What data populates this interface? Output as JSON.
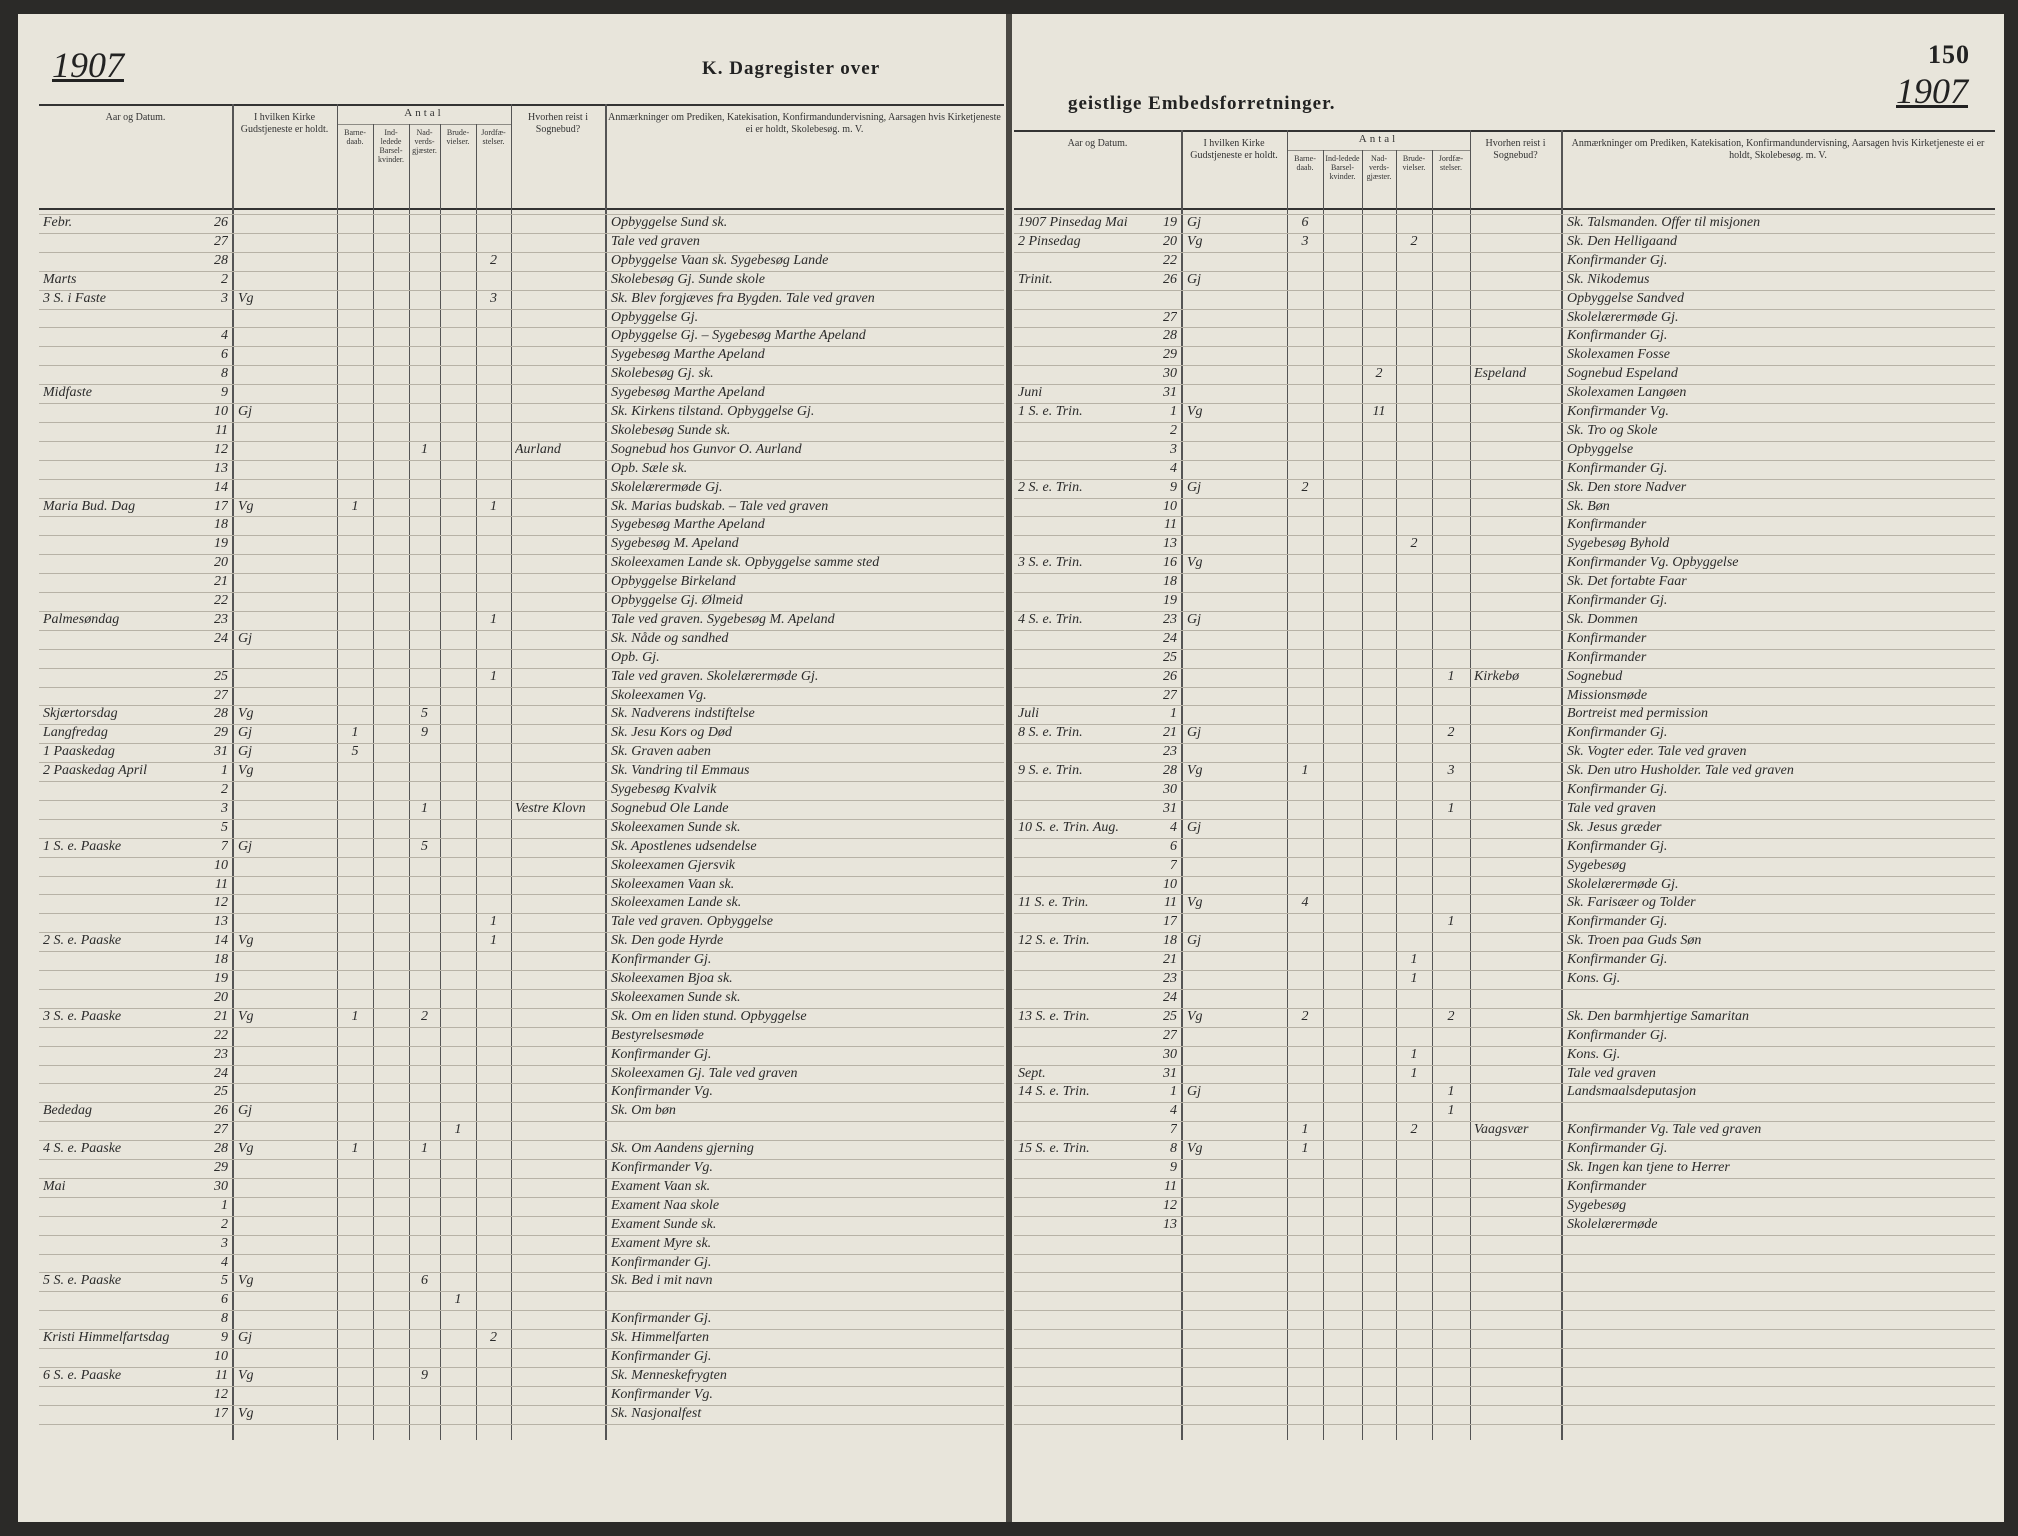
{
  "header": {
    "year_left": "1907",
    "title_left": "K. Dagregister over",
    "title_right": "geistlige Embedsforretninger.",
    "page_number": "150",
    "year_right": "1907"
  },
  "columns": {
    "date": "Aar og Datum.",
    "church": "I hvilken Kirke Gudstjeneste er holdt.",
    "antal": "Antal",
    "baptisms": "Barne-daab.",
    "churchings": "Ind-ledede Barsel-kvinder.",
    "communicants": "Nad-verds-gjæster.",
    "weddings": "Brude-vielser.",
    "burials": "Jordfæ-stelser.",
    "sick_call": "Hvorhen reist i Sognebud?",
    "note": "Anmærkninger om Prediken, Katekisation, Konfirmandundervisning, Aarsagen hvis Kirketjeneste ei er holdt, Skolebesøg. m. V."
  },
  "left_rows": [
    {
      "label": "Febr.",
      "day": "26",
      "note": "Opbyggelse Sund sk."
    },
    {
      "day": "27",
      "note": "Tale ved graven"
    },
    {
      "day": "28",
      "burials": "2",
      "note": "Opbyggelse Vaan sk. Sygebesøg Lande"
    },
    {
      "label": "Marts",
      "day": "2",
      "note": "Skolebesøg Gj. Sunde skole"
    },
    {
      "label": "3 S. i Faste",
      "day": "3",
      "church": "Vg",
      "burials": "3",
      "note": "Sk. Blev forgjæves fra Bygden. Tale ved graven"
    },
    {
      "note": "Opbyggelse Gj."
    },
    {
      "day": "4",
      "note": "Opbyggelse Gj. – Sygebesøg Marthe Apeland"
    },
    {
      "day": "6",
      "note": "Sygebesøg Marthe Apeland"
    },
    {
      "day": "8",
      "note": "Skolebesøg Gj. sk."
    },
    {
      "label": "Midfaste",
      "day": "9",
      "note": "Sygebesøg Marthe Apeland"
    },
    {
      "day": "10",
      "church": "Gj",
      "note": "Sk. Kirkens tilstand. Opbyggelse Gj."
    },
    {
      "day": "11",
      "note": "Skolebesøg Sunde sk."
    },
    {
      "day": "12",
      "communicants": "1",
      "sick_call": "Aurland",
      "note": "Sognebud hos Gunvor O. Aurland"
    },
    {
      "day": "13",
      "note": "Opb. Sæle sk."
    },
    {
      "day": "14",
      "note": "Skolelærermøde Gj."
    },
    {
      "label": "Maria Bud. Dag",
      "day": "17",
      "church": "Vg",
      "baptisms": "1",
      "burials": "1",
      "note": "Sk. Marias budskab. – Tale ved graven"
    },
    {
      "day": "18",
      "note": "Sygebesøg Marthe Apeland"
    },
    {
      "day": "19",
      "note": "Sygebesøg M. Apeland"
    },
    {
      "day": "20",
      "note": "Skoleexamen Lande sk. Opbyggelse samme sted"
    },
    {
      "day": "21",
      "note": "Opbyggelse Birkeland"
    },
    {
      "day": "22",
      "note": "Opbyggelse Gj. Ølmeid"
    },
    {
      "label": "Palmesøndag",
      "day": "23",
      "burials": "1",
      "note": "Tale ved graven. Sygebesøg M. Apeland"
    },
    {
      "day": "24",
      "church": "Gj",
      "note": "Sk. Nåde og sandhed"
    },
    {
      "note": "Opb. Gj."
    },
    {
      "day": "25",
      "burials": "1",
      "note": "Tale ved graven. Skolelærermøde Gj."
    },
    {
      "day": "27",
      "note": "Skoleexamen Vg."
    },
    {
      "label": "Skjærtorsdag",
      "day": "28",
      "church": "Vg",
      "communicants": "5",
      "note": "Sk. Nadverens indstiftelse"
    },
    {
      "label": "Langfredag",
      "day": "29",
      "church": "Gj",
      "baptisms": "1",
      "communicants": "9",
      "note": "Sk. Jesu Kors og Død"
    },
    {
      "label": "1 Paaskedag",
      "day": "31",
      "church": "Gj",
      "baptisms": "5",
      "note": "Sk. Graven aaben"
    },
    {
      "label": "2 Paaskedag April",
      "day": "1",
      "church": "Vg",
      "note": "Sk. Vandring til Emmaus"
    },
    {
      "day": "2",
      "note": "Sygebesøg Kvalvik"
    },
    {
      "day": "3",
      "communicants": "1",
      "sick_call": "Vestre Klovn",
      "note": "Sognebud Ole Lande"
    },
    {
      "day": "5",
      "note": "Skoleexamen Sunde sk."
    },
    {
      "label": "1 S. e. Paaske",
      "day": "7",
      "church": "Gj",
      "communicants": "5",
      "note": "Sk. Apostlenes udsendelse"
    },
    {
      "day": "10",
      "note": "Skoleexamen Gjersvik"
    },
    {
      "day": "11",
      "note": "Skoleexamen Vaan sk."
    },
    {
      "day": "12",
      "note": "Skoleexamen Lande sk."
    },
    {
      "day": "13",
      "burials": "1",
      "note": "Tale ved graven. Opbyggelse"
    },
    {
      "label": "2 S. e. Paaske",
      "day": "14",
      "church": "Vg",
      "burials": "1",
      "note": "Sk. Den gode Hyrde"
    },
    {
      "day": "18",
      "note": "Konfirmander Gj."
    },
    {
      "day": "19",
      "note": "Skoleexamen Bjoa sk."
    },
    {
      "day": "20",
      "note": "Skoleexamen Sunde sk."
    },
    {
      "label": "3 S. e. Paaske",
      "day": "21",
      "church": "Vg",
      "baptisms": "1",
      "communicants": "2",
      "note": "Sk. Om en liden stund. Opbyggelse"
    },
    {
      "day": "22",
      "note": "Bestyrelsesmøde"
    },
    {
      "day": "23",
      "note": "Konfirmander Gj."
    },
    {
      "day": "24",
      "note": "Skoleexamen Gj. Tale ved graven"
    },
    {
      "day": "25",
      "note": "Konfirmander Vg."
    },
    {
      "label": "Bededag",
      "day": "26",
      "church": "Gj",
      "note": "Sk. Om bøn"
    },
    {
      "day": "27",
      "weddings": "1"
    },
    {
      "label": "4 S. e. Paaske",
      "day": "28",
      "church": "Vg",
      "baptisms": "1",
      "communicants": "1",
      "note": "Sk. Om Aandens gjerning"
    },
    {
      "day": "29",
      "note": "Konfirmander Vg."
    },
    {
      "label": "Mai",
      "day": "30",
      "note": "Exament Vaan sk."
    },
    {
      "day": "1",
      "note": "Exament Naa skole"
    },
    {
      "day": "2",
      "note": "Exament Sunde sk."
    },
    {
      "day": "3",
      "note": "Exament Myre sk."
    },
    {
      "day": "4",
      "note": "Konfirmander Gj."
    },
    {
      "label": "5 S. e. Paaske",
      "day": "5",
      "church": "Vg",
      "communicants": "6",
      "note": "Sk. Bed i mit navn"
    },
    {
      "day": "6",
      "weddings": "1"
    },
    {
      "day": "8",
      "note": "Konfirmander Gj."
    },
    {
      "label": "Kristi Himmelfartsdag",
      "day": "9",
      "church": "Gj",
      "burials": "2",
      "note": "Sk. Himmelfarten"
    },
    {
      "day": "10",
      "note": "Konfirmander Gj."
    },
    {
      "label": "6 S. e. Paaske",
      "day": "11",
      "church": "Vg",
      "communicants": "9",
      "note": "Sk. Menneskefrygten"
    },
    {
      "day": "12",
      "note": "Konfirmander Vg."
    },
    {
      "day": "17",
      "church": "Vg",
      "note": "Sk. Nasjonalfest"
    }
  ],
  "right_rows": [
    {
      "label": "1907 Pinsedag Mai",
      "day": "19",
      "church": "Gj",
      "baptisms": "6",
      "note": "Sk. Talsmanden. Offer til misjonen"
    },
    {
      "label": "2 Pinsedag",
      "day": "20",
      "church": "Vg",
      "baptisms": "3",
      "weddings": "2",
      "note": "Sk. Den Helligaand"
    },
    {
      "day": "22",
      "note": "Konfirmander Gj."
    },
    {
      "label": "Trinit.",
      "day": "26",
      "church": "Gj",
      "note": "Sk. Nikodemus"
    },
    {
      "note": "Opbyggelse Sandved"
    },
    {
      "day": "27",
      "note": "Skolelærermøde Gj."
    },
    {
      "day": "28",
      "note": "Konfirmander Gj."
    },
    {
      "day": "29",
      "note": "Skolexamen Fosse"
    },
    {
      "day": "30",
      "communicants": "2",
      "sick_call": "Espeland",
      "note": "Sognebud Espeland"
    },
    {
      "label": "Juni",
      "day": "31",
      "note": "Skolexamen Langøen"
    },
    {
      "label": "1 S. e. Trin.",
      "day": "1",
      "church": "Vg",
      "communicants": "11",
      "note": "Konfirmander Vg."
    },
    {
      "day": "2",
      "note": "Sk. Tro og Skole"
    },
    {
      "day": "3",
      "note": "Opbyggelse"
    },
    {
      "day": "4",
      "note": "Konfirmander Gj."
    },
    {
      "label": "2 S. e. Trin.",
      "day": "9",
      "church": "Gj",
      "baptisms": "2",
      "note": "Sk. Den store Nadver"
    },
    {
      "day": "10",
      "note": "Sk. Bøn"
    },
    {
      "day": "11",
      "note": "Konfirmander"
    },
    {
      "day": "13",
      "weddings": "2",
      "note": "Sygebesøg Byhold"
    },
    {
      "label": "3 S. e. Trin.",
      "day": "16",
      "church": "Vg",
      "note": "Konfirmander Vg. Opbyggelse"
    },
    {
      "day": "18",
      "note": "Sk. Det fortabte Faar"
    },
    {
      "day": "19",
      "note": "Konfirmander Gj."
    },
    {
      "label": "4 S. e. Trin.",
      "day": "23",
      "church": "Gj",
      "note": "Sk. Dommen"
    },
    {
      "day": "24",
      "note": "Konfirmander"
    },
    {
      "day": "25",
      "note": "Konfirmander"
    },
    {
      "day": "26",
      "burials": "1",
      "sick_call": "Kirkebø",
      "note": "Sognebud"
    },
    {
      "day": "27",
      "note": "Missionsmøde"
    },
    {
      "label": "Juli",
      "day": "1",
      "note": "Bortreist med permission"
    },
    {
      "label": "8 S. e. Trin.",
      "day": "21",
      "church": "Gj",
      "burials": "2",
      "note": "Konfirmander Gj."
    },
    {
      "day": "23",
      "note": "Sk. Vogter eder. Tale ved graven"
    },
    {
      "label": "9 S. e. Trin.",
      "day": "28",
      "church": "Vg",
      "baptisms": "1",
      "burials": "3",
      "note": "Sk. Den utro Husholder. Tale ved graven"
    },
    {
      "day": "30",
      "note": "Konfirmander Gj."
    },
    {
      "day": "31",
      "burials": "1",
      "note": "Tale ved graven"
    },
    {
      "label": "10 S. e. Trin. Aug.",
      "day": "4",
      "church": "Gj",
      "note": "Sk. Jesus græder"
    },
    {
      "day": "6",
      "note": "Konfirmander Gj."
    },
    {
      "day": "7",
      "note": "Sygebesøg"
    },
    {
      "day": "10",
      "note": "Skolelærermøde Gj."
    },
    {
      "label": "11 S. e. Trin.",
      "day": "11",
      "church": "Vg",
      "baptisms": "4",
      "note": "Sk. Farisæer og Tolder"
    },
    {
      "day": "17",
      "burials": "1",
      "note": "Konfirmander Gj."
    },
    {
      "label": "12 S. e. Trin.",
      "day": "18",
      "church": "Gj",
      "note": "Sk. Troen paa Guds Søn"
    },
    {
      "day": "21",
      "weddings": "1",
      "note": "Konfirmander Gj."
    },
    {
      "day": "23",
      "weddings": "1",
      "note": "Kons. Gj."
    },
    {
      "day": "24"
    },
    {
      "label": "13 S. e. Trin.",
      "day": "25",
      "church": "Vg",
      "baptisms": "2",
      "burials": "2",
      "note": "Sk. Den barmhjertige Samaritan"
    },
    {
      "day": "27",
      "note": "Konfirmander Gj."
    },
    {
      "day": "30",
      "weddings": "1",
      "note": "Kons. Gj."
    },
    {
      "label": "Sept.",
      "day": "31",
      "weddings": "1",
      "note": "Tale ved graven"
    },
    {
      "label": "14 S. e. Trin.",
      "day": "1",
      "church": "Gj",
      "burials": "1",
      "note": "Landsmaalsdeputasjon"
    },
    {
      "day": "4",
      "burials": "1"
    },
    {
      "day": "7",
      "baptisms": "1",
      "weddings": "2",
      "sick_call": "Vaagsvær",
      "note": "Konfirmander Vg. Tale ved graven"
    },
    {
      "label": "15 S. e. Trin.",
      "day": "8",
      "church": "Vg",
      "baptisms": "1",
      "note": "Konfirmander Gj."
    },
    {
      "day": "9",
      "note": "Sk. Ingen kan tjene to Herrer"
    },
    {
      "day": "11",
      "note": "Konfirmander"
    },
    {
      "day": "12",
      "note": "Sygebesøg"
    },
    {
      "day": "13",
      "note": "Skolelærermøde"
    }
  ]
}
